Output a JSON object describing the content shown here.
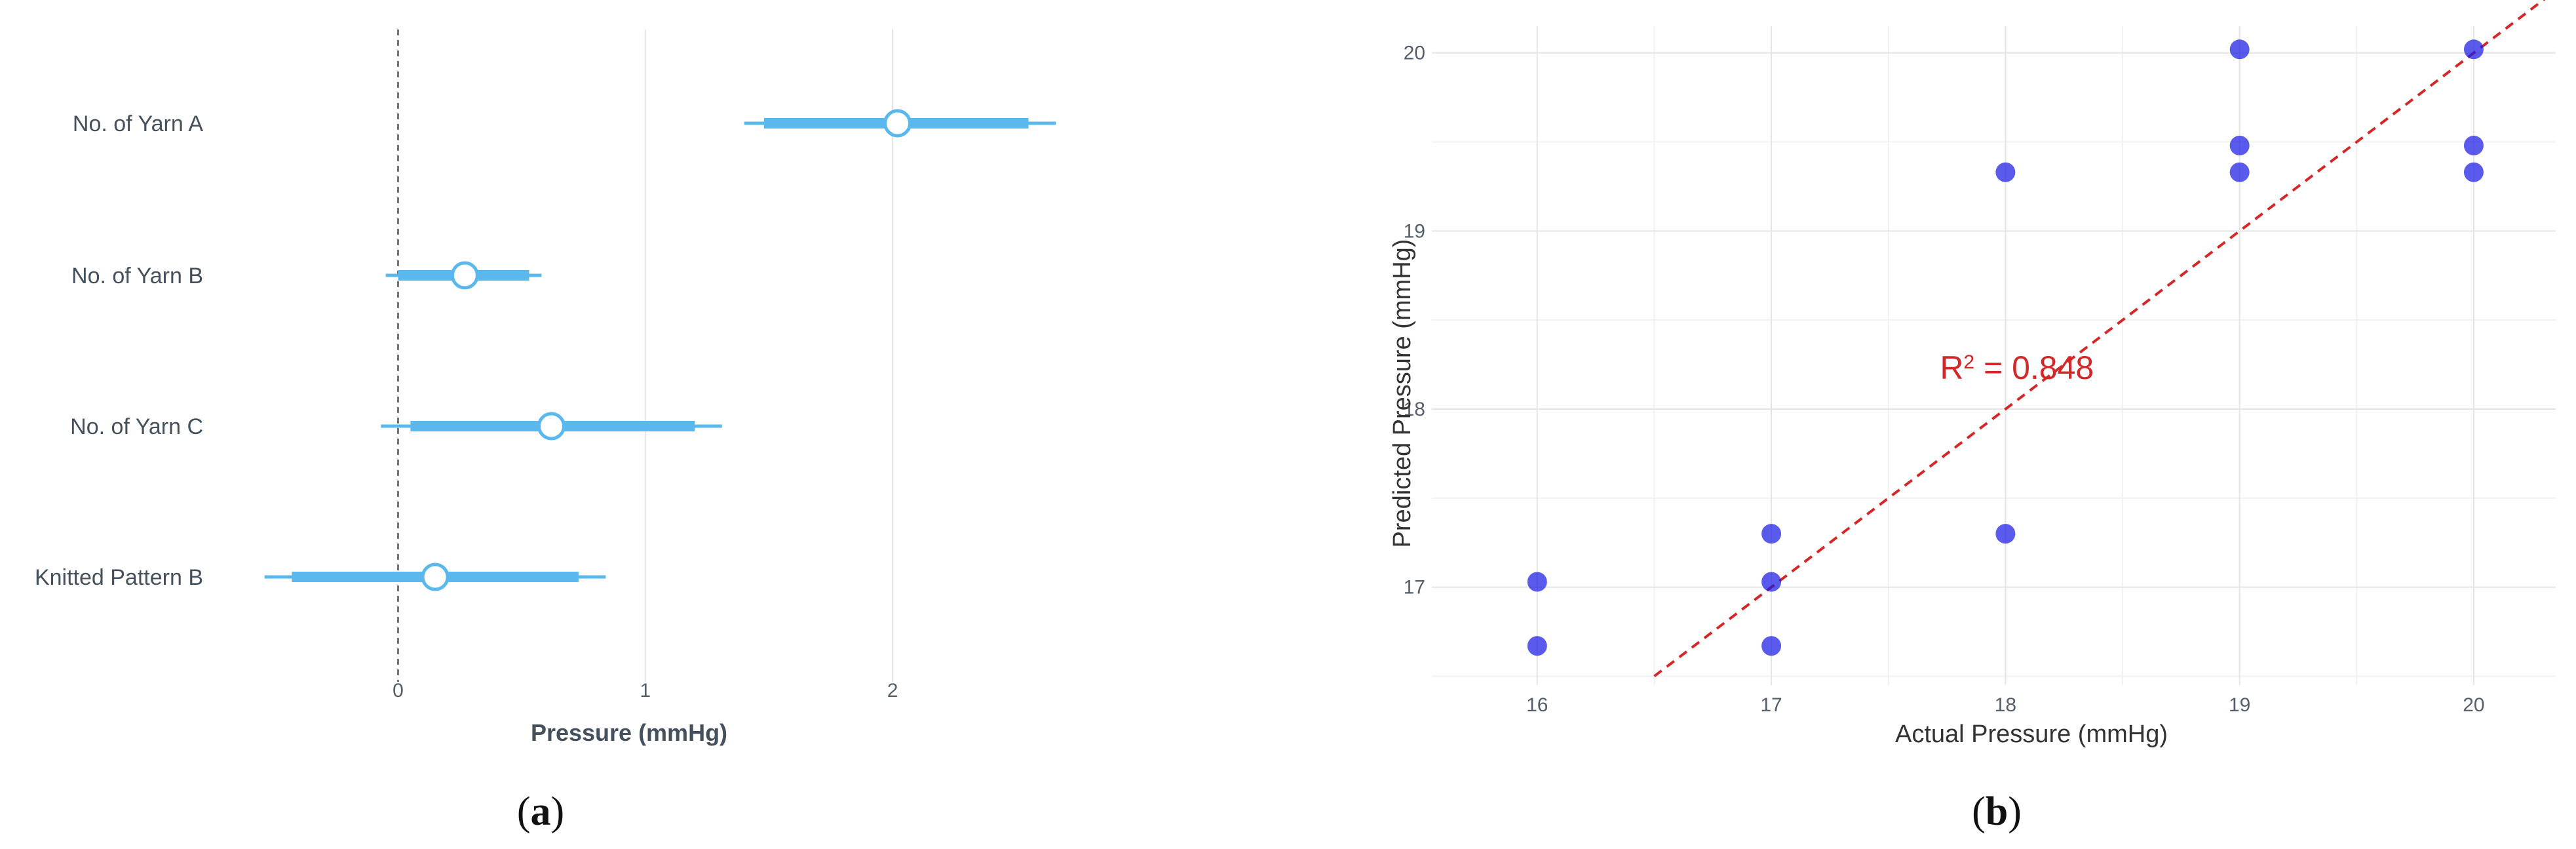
{
  "panels": {
    "a": {
      "label_open": "(",
      "label_letter": "a",
      "label_close": ")"
    },
    "b": {
      "label_open": "(",
      "label_letter": "b",
      "label_close": ")"
    }
  },
  "chart_data": [
    {
      "type": "forest",
      "xlabel": "Pressure (mmHg)",
      "ylabel": "",
      "xlim": [
        -0.55,
        2.75
      ],
      "xticks": [
        0,
        1,
        2
      ],
      "grid": true,
      "reference_line": 0,
      "colors": {
        "interval": "#5bb8ec",
        "point_fill": "#ffffff",
        "point_edge": "#5bb8ec",
        "reference": "#777777",
        "grid": "#e4e4e4"
      },
      "categories": [
        "No. of Yarn A",
        "No. of Yarn B",
        "No. of Yarn C",
        "Knitted Pattern B"
      ],
      "estimates": [
        2.02,
        0.27,
        0.62,
        0.15
      ],
      "inner_interval": [
        [
          1.48,
          2.55
        ],
        [
          0.0,
          0.53
        ],
        [
          0.05,
          1.2
        ],
        [
          -0.43,
          0.73
        ]
      ],
      "outer_interval": [
        [
          1.4,
          2.66
        ],
        [
          -0.05,
          0.58
        ],
        [
          -0.07,
          1.31
        ],
        [
          -0.54,
          0.84
        ]
      ]
    },
    {
      "type": "scatter",
      "xlabel": "Actual Pressure (mmHg)",
      "ylabel": "Predicted Pressure (mmHg)",
      "xlim": [
        15.55,
        20.35
      ],
      "ylim": [
        16.45,
        20.15
      ],
      "xticks": [
        16,
        17,
        18,
        19,
        20
      ],
      "yticks": [
        17,
        18,
        19,
        20
      ],
      "grid": true,
      "colors": {
        "point": "#1a1ae6",
        "fit_line": "#d62728",
        "grid": "#e4e4e4"
      },
      "points": [
        {
          "x": 16,
          "y": 17.03
        },
        {
          "x": 16,
          "y": 16.67
        },
        {
          "x": 17,
          "y": 17.3
        },
        {
          "x": 17,
          "y": 17.03
        },
        {
          "x": 17,
          "y": 16.67
        },
        {
          "x": 18,
          "y": 19.33
        },
        {
          "x": 18,
          "y": 17.3
        },
        {
          "x": 19,
          "y": 20.02
        },
        {
          "x": 19,
          "y": 19.48
        },
        {
          "x": 19,
          "y": 19.33
        },
        {
          "x": 20,
          "y": 20.02
        },
        {
          "x": 20,
          "y": 19.48
        },
        {
          "x": 20,
          "y": 19.33
        }
      ],
      "fit_line": {
        "style": "dashed",
        "from": [
          16.5,
          16.5
        ],
        "to": [
          20.35,
          20.35
        ]
      },
      "annotation": {
        "text_main": "R",
        "text_sup": "2",
        "text_rest": " = 0.848",
        "x": 17.72,
        "y": 18.17
      }
    }
  ]
}
